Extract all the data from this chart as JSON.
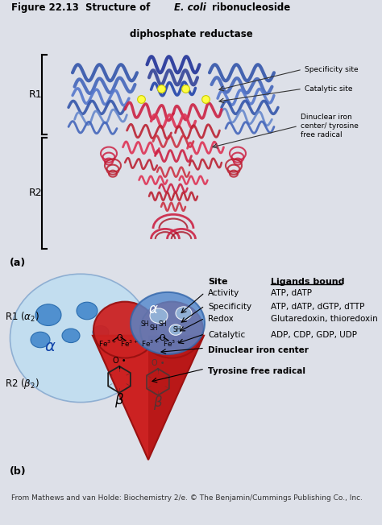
{
  "bg_color": "#dde0e8",
  "footer": "From Mathews and van Holde: Biochemistry 2/e. © The Benjamin/Cummings Publishing Co., Inc.",
  "table_rows": [
    {
      "site": "Activity",
      "ligands": "ATP, dATP"
    },
    {
      "site": "Specificity",
      "ligands": "ATP, dATP, dGTP, dTTP"
    },
    {
      "site": "Redox",
      "ligands": "Glutaredoxin, thioredoxin"
    },
    {
      "site": "Catalytic",
      "ligands": "ADP, CDP, GDP, UDP"
    }
  ],
  "label_dinuclear": "Dinuclear iron center",
  "label_tyrosine": "Tyrosine free radical"
}
